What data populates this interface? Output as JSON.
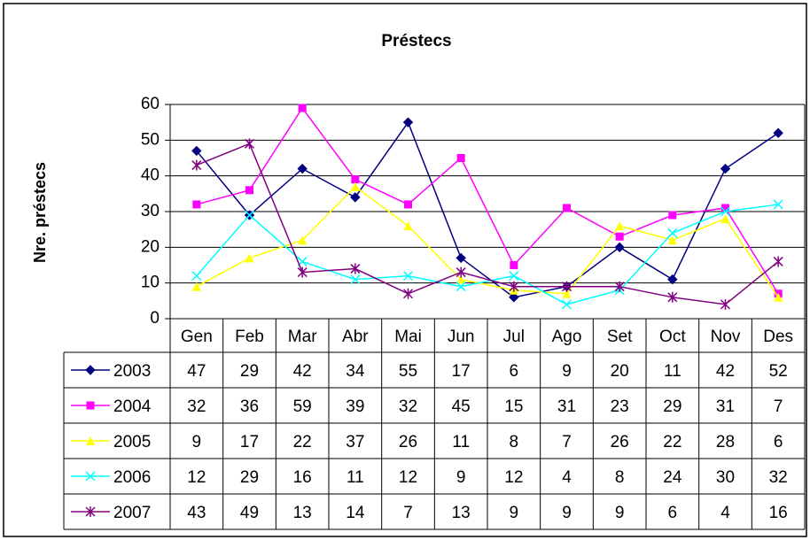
{
  "chart_data": {
    "type": "line",
    "title": "Préstecs",
    "y_label": "Nre. préstecs",
    "categories": [
      "Gen",
      "Feb",
      "Mar",
      "Abr",
      "Mai",
      "Jun",
      "Jul",
      "Ago",
      "Set",
      "Oct",
      "Nov",
      "Des"
    ],
    "series": [
      {
        "name": "2003",
        "color": "#000080",
        "marker": "diamond",
        "values": [
          47,
          29,
          42,
          34,
          55,
          17,
          6,
          9,
          20,
          11,
          42,
          52
        ]
      },
      {
        "name": "2004",
        "color": "#ff00ff",
        "marker": "square",
        "values": [
          32,
          36,
          59,
          39,
          32,
          45,
          15,
          31,
          23,
          29,
          31,
          7
        ]
      },
      {
        "name": "2005",
        "color": "#ffff00",
        "marker": "triangle",
        "values": [
          9,
          17,
          22,
          37,
          26,
          11,
          8,
          7,
          26,
          22,
          28,
          6
        ]
      },
      {
        "name": "2006",
        "color": "#00ffff",
        "marker": "x",
        "values": [
          12,
          29,
          16,
          11,
          12,
          9,
          12,
          4,
          8,
          24,
          30,
          32
        ]
      },
      {
        "name": "2007",
        "color": "#800080",
        "marker": "star",
        "values": [
          43,
          49,
          13,
          14,
          7,
          13,
          9,
          9,
          9,
          6,
          4,
          16
        ]
      }
    ],
    "ylim": [
      0,
      60
    ],
    "yticks": [
      0,
      10,
      20,
      30,
      40,
      50,
      60
    ],
    "grid": true,
    "data_table": true
  }
}
